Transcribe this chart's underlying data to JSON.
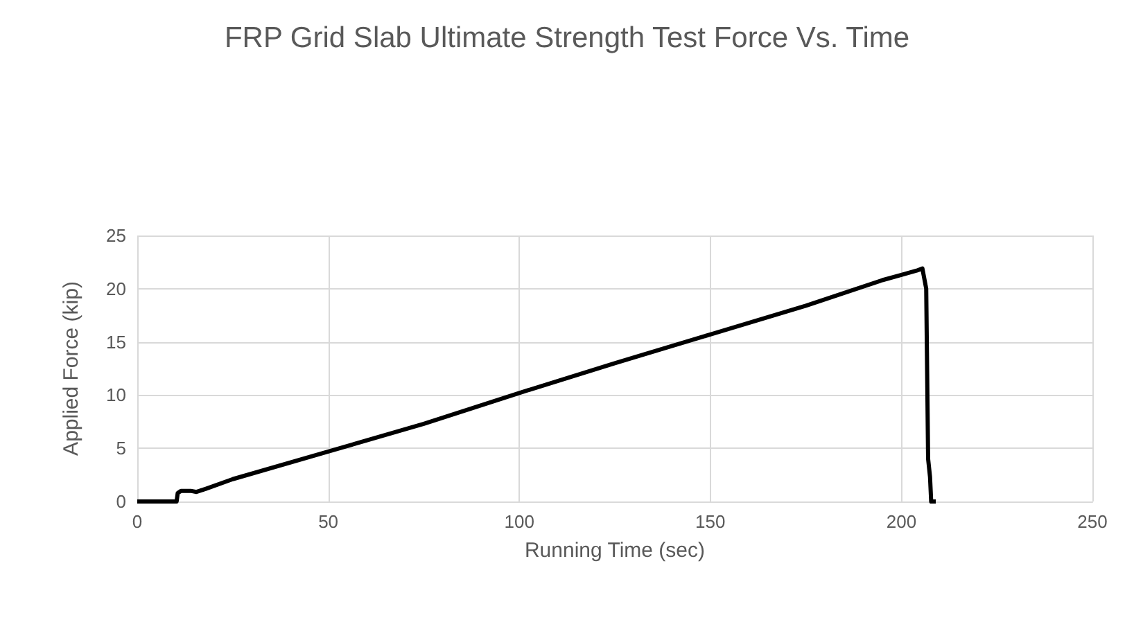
{
  "chart_data": {
    "type": "line",
    "title": "FRP Grid Slab Ultimate Strength Test Force Vs. Time",
    "xlabel": "Running Time (sec)",
    "ylabel": "Applied Force (kip)",
    "x": [
      0,
      10.3,
      10.6,
      11.5,
      14,
      15.5,
      18,
      25,
      50,
      75,
      100,
      125,
      150,
      175,
      195,
      200,
      204,
      205.5,
      206.5,
      207,
      207.5,
      207.8,
      209
    ],
    "series": [
      {
        "color": "#000000",
        "values": [
          0,
          0,
          0.8,
          1.0,
          1.0,
          0.9,
          1.2,
          2.1,
          4.7,
          7.3,
          10.2,
          13,
          15.7,
          18.4,
          20.8,
          21.3,
          21.7,
          21.9,
          20,
          4,
          2.3,
          0,
          0
        ]
      }
    ],
    "xlim": [
      0,
      250
    ],
    "xticks": [
      0,
      50,
      100,
      150,
      200,
      250
    ],
    "ylim": [
      0,
      25
    ],
    "yticks": [
      0,
      5,
      10,
      15,
      20,
      25
    ],
    "grid": true,
    "marker": "none",
    "line_style": "solid"
  }
}
